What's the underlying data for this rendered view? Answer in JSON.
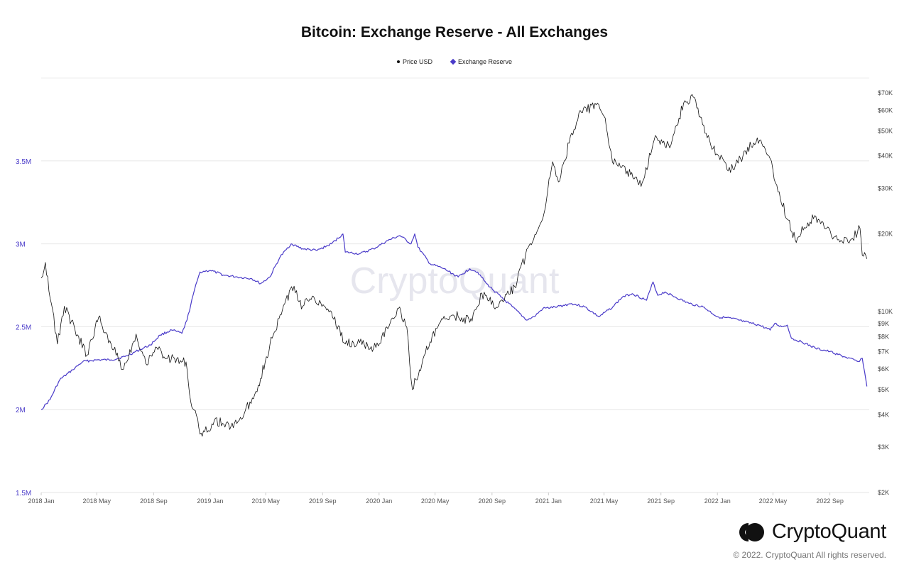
{
  "chart_data": {
    "type": "line",
    "title": "Bitcoin: Exchange Reserve - All Exchanges",
    "legend": [
      {
        "name": "Price USD",
        "color": "#111111",
        "marker": "dot"
      },
      {
        "name": "Exchange Reserve",
        "color": "#4a3bc9",
        "marker": "diamond"
      }
    ],
    "legend_position": "top-center",
    "grid": "horizontal",
    "x_ticks": [
      "2018 Jan",
      "2018 May",
      "2018 Sep",
      "2019 Jan",
      "2019 May",
      "2019 Sep",
      "2020 Jan",
      "2020 May",
      "2020 Sep",
      "2021 Jan",
      "2021 May",
      "2021 Sep",
      "2022 Jan",
      "2022 May",
      "2022 Sep"
    ],
    "left_axis": {
      "series": "Exchange Reserve",
      "range": [
        1500000,
        4000000
      ],
      "ticks": [
        "1.5M",
        "2M",
        "2.5M",
        "3M",
        "3.5M"
      ],
      "tick_values": [
        1500000,
        2000000,
        2500000,
        3000000,
        3500000
      ],
      "color": "#4a3bc9"
    },
    "right_axis": {
      "series": "Price USD",
      "scale": "log",
      "range": [
        2000,
        80000
      ],
      "ticks": [
        "$2K",
        "$3K",
        "$4K",
        "$5K",
        "$6K",
        "$7K",
        "$8K",
        "$9K",
        "$10K",
        "$20K",
        "$30K",
        "$40K",
        "$50K",
        "$60K",
        "$70K"
      ],
      "tick_values": [
        2000,
        3000,
        4000,
        5000,
        6000,
        7000,
        8000,
        9000,
        10000,
        20000,
        30000,
        40000,
        50000,
        60000,
        70000
      ]
    },
    "x_range": [
      "2018-01-01",
      "2022-11-25"
    ],
    "series": [
      {
        "name": "Exchange Reserve",
        "axis": "left",
        "color": "#4a3bc9",
        "points": [
          [
            "2018-01-01",
            2000000
          ],
          [
            "2018-01-20",
            2060000
          ],
          [
            "2018-02-10",
            2180000
          ],
          [
            "2018-03-10",
            2240000
          ],
          [
            "2018-04-01",
            2290000
          ],
          [
            "2018-05-01",
            2300000
          ],
          [
            "2018-06-01",
            2300000
          ],
          [
            "2018-07-01",
            2320000
          ],
          [
            "2018-08-01",
            2360000
          ],
          [
            "2018-08-25",
            2390000
          ],
          [
            "2018-09-15",
            2450000
          ],
          [
            "2018-10-10",
            2480000
          ],
          [
            "2018-11-01",
            2460000
          ],
          [
            "2018-11-12",
            2540000
          ],
          [
            "2018-11-28",
            2720000
          ],
          [
            "2018-12-10",
            2830000
          ],
          [
            "2019-01-01",
            2840000
          ],
          [
            "2019-02-01",
            2810000
          ],
          [
            "2019-03-01",
            2800000
          ],
          [
            "2019-04-01",
            2790000
          ],
          [
            "2019-04-20",
            2760000
          ],
          [
            "2019-05-10",
            2800000
          ],
          [
            "2019-06-01",
            2920000
          ],
          [
            "2019-06-25",
            3000000
          ],
          [
            "2019-07-20",
            2970000
          ],
          [
            "2019-08-20",
            2960000
          ],
          [
            "2019-09-20",
            3000000
          ],
          [
            "2019-10-15",
            3060000
          ],
          [
            "2019-10-20",
            2950000
          ],
          [
            "2019-11-20",
            2940000
          ],
          [
            "2019-12-20",
            2970000
          ],
          [
            "2020-01-20",
            3020000
          ],
          [
            "2020-02-15",
            3050000
          ],
          [
            "2020-03-10",
            3000000
          ],
          [
            "2020-03-18",
            3060000
          ],
          [
            "2020-03-25",
            2980000
          ],
          [
            "2020-04-20",
            2880000
          ],
          [
            "2020-05-20",
            2850000
          ],
          [
            "2020-06-20",
            2800000
          ],
          [
            "2020-07-15",
            2850000
          ],
          [
            "2020-08-01",
            2830000
          ],
          [
            "2020-08-20",
            2760000
          ],
          [
            "2020-09-20",
            2680000
          ],
          [
            "2020-10-15",
            2620000
          ],
          [
            "2020-11-15",
            2540000
          ],
          [
            "2020-12-01",
            2560000
          ],
          [
            "2020-12-20",
            2610000
          ],
          [
            "2021-01-20",
            2620000
          ],
          [
            "2021-02-20",
            2640000
          ],
          [
            "2021-03-20",
            2620000
          ],
          [
            "2021-04-20",
            2560000
          ],
          [
            "2021-05-20",
            2620000
          ],
          [
            "2021-06-10",
            2680000
          ],
          [
            "2021-07-01",
            2700000
          ],
          [
            "2021-08-01",
            2660000
          ],
          [
            "2021-08-15",
            2770000
          ],
          [
            "2021-08-25",
            2690000
          ],
          [
            "2021-09-10",
            2710000
          ],
          [
            "2021-10-01",
            2680000
          ],
          [
            "2021-11-01",
            2640000
          ],
          [
            "2021-12-01",
            2620000
          ],
          [
            "2022-01-01",
            2560000
          ],
          [
            "2022-02-01",
            2550000
          ],
          [
            "2022-03-01",
            2530000
          ],
          [
            "2022-04-01",
            2510000
          ],
          [
            "2022-04-25",
            2480000
          ],
          [
            "2022-05-05",
            2520000
          ],
          [
            "2022-05-20",
            2500000
          ],
          [
            "2022-06-01",
            2510000
          ],
          [
            "2022-06-10",
            2430000
          ],
          [
            "2022-07-01",
            2410000
          ],
          [
            "2022-08-01",
            2370000
          ],
          [
            "2022-09-01",
            2350000
          ],
          [
            "2022-10-01",
            2320000
          ],
          [
            "2022-11-01",
            2290000
          ],
          [
            "2022-11-10",
            2310000
          ],
          [
            "2022-11-20",
            2140000
          ]
        ]
      },
      {
        "name": "Price USD",
        "axis": "right",
        "color": "#111111",
        "points": [
          [
            "2018-01-01",
            13500
          ],
          [
            "2018-01-10",
            15500
          ],
          [
            "2018-02-05",
            7500
          ],
          [
            "2018-02-20",
            10500
          ],
          [
            "2018-03-15",
            8500
          ],
          [
            "2018-04-10",
            6800
          ],
          [
            "2018-05-05",
            9500
          ],
          [
            "2018-06-01",
            7500
          ],
          [
            "2018-06-28",
            6000
          ],
          [
            "2018-07-25",
            8200
          ],
          [
            "2018-08-15",
            6300
          ],
          [
            "2018-09-05",
            7300
          ],
          [
            "2018-10-01",
            6600
          ],
          [
            "2018-11-10",
            6400
          ],
          [
            "2018-11-20",
            4500
          ],
          [
            "2018-12-15",
            3300
          ],
          [
            "2019-01-10",
            3800
          ],
          [
            "2019-02-15",
            3600
          ],
          [
            "2019-03-15",
            4000
          ],
          [
            "2019-04-15",
            5200
          ],
          [
            "2019-05-15",
            7900
          ],
          [
            "2019-06-26",
            12500
          ],
          [
            "2019-07-20",
            10500
          ],
          [
            "2019-08-10",
            11500
          ],
          [
            "2019-09-20",
            10000
          ],
          [
            "2019-10-20",
            7500
          ],
          [
            "2019-11-20",
            7600
          ],
          [
            "2019-12-20",
            7200
          ],
          [
            "2020-01-20",
            8600
          ],
          [
            "2020-02-12",
            10300
          ],
          [
            "2020-03-01",
            8700
          ],
          [
            "2020-03-13",
            5000
          ],
          [
            "2020-04-10",
            6900
          ],
          [
            "2020-05-10",
            9000
          ],
          [
            "2020-06-10",
            9700
          ],
          [
            "2020-07-20",
            9200
          ],
          [
            "2020-08-10",
            11800
          ],
          [
            "2020-09-10",
            10400
          ],
          [
            "2020-10-20",
            12500
          ],
          [
            "2020-11-20",
            18000
          ],
          [
            "2020-12-20",
            23000
          ],
          [
            "2021-01-10",
            38000
          ],
          [
            "2021-01-25",
            32000
          ],
          [
            "2021-02-20",
            49000
          ],
          [
            "2021-03-13",
            59000
          ],
          [
            "2021-04-14",
            63000
          ],
          [
            "2021-05-01",
            57000
          ],
          [
            "2021-05-19",
            38000
          ],
          [
            "2021-06-20",
            35000
          ],
          [
            "2021-07-20",
            30500
          ],
          [
            "2021-08-20",
            48000
          ],
          [
            "2021-09-20",
            43000
          ],
          [
            "2021-10-20",
            64000
          ],
          [
            "2021-11-10",
            67500
          ],
          [
            "2021-12-05",
            49000
          ],
          [
            "2022-01-24",
            35000
          ],
          [
            "2022-02-20",
            39000
          ],
          [
            "2022-03-28",
            47000
          ],
          [
            "2022-04-25",
            39000
          ],
          [
            "2022-05-12",
            29000
          ],
          [
            "2022-06-18",
            19000
          ],
          [
            "2022-07-30",
            23500
          ],
          [
            "2022-08-20",
            21000
          ],
          [
            "2022-09-20",
            19000
          ],
          [
            "2022-10-20",
            19200
          ],
          [
            "2022-11-05",
            21000
          ],
          [
            "2022-11-10",
            16500
          ],
          [
            "2022-11-20",
            16000
          ]
        ]
      }
    ],
    "watermark": "CryptoQuant"
  },
  "footer": {
    "brand": "CryptoQuant",
    "copyright": "© 2022. CryptoQuant All rights reserved."
  }
}
